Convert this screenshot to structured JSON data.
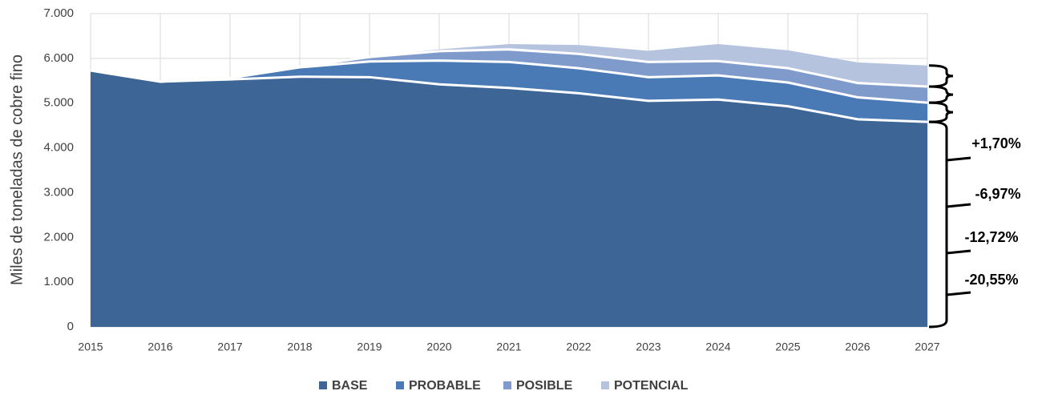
{
  "chart_data": {
    "type": "area",
    "stacked": true,
    "y_label": "Miles de toneladas de cobre fino",
    "categories": [
      "2015",
      "2016",
      "2017",
      "2018",
      "2019",
      "2020",
      "2021",
      "2022",
      "2023",
      "2024",
      "2025",
      "2026",
      "2027"
    ],
    "series": [
      {
        "name": "BASE",
        "color": "#3d6595",
        "values": [
          5730,
          5480,
          5530,
          5590,
          5580,
          5420,
          5340,
          5220,
          5050,
          5080,
          4930,
          4640,
          4580
        ]
      },
      {
        "name": "PROBABLE",
        "color": "#4a7ab5",
        "values": [
          0,
          0,
          30,
          210,
          350,
          530,
          580,
          560,
          530,
          540,
          530,
          490,
          430
        ]
      },
      {
        "name": "POSIBLE",
        "color": "#7f9bcb",
        "values": [
          0,
          0,
          0,
          10,
          100,
          210,
          280,
          320,
          340,
          320,
          320,
          320,
          360
        ]
      },
      {
        "name": "POTENCIAL",
        "color": "#b5c3de",
        "values": [
          0,
          0,
          0,
          0,
          0,
          40,
          120,
          200,
          250,
          380,
          400,
          460,
          470
        ]
      }
    ],
    "ylim": [
      0,
      7000
    ],
    "yticks": [
      0,
      {
        "value": 1000,
        "label": "1.000"
      },
      {
        "value": 2000,
        "label": "2.000"
      },
      {
        "value": 3000,
        "label": "3.000"
      },
      {
        "value": 4000,
        "label": "4.000"
      },
      {
        "value": 5000,
        "label": "5.000"
      },
      {
        "value": 6000,
        "label": "6.000"
      },
      {
        "value": 7000,
        "label": "7.000"
      }
    ],
    "grid": true,
    "legend": "bottom",
    "annotations": [
      "+1,70%",
      "-6,97%",
      "-12,72%",
      "-20,55%"
    ]
  }
}
